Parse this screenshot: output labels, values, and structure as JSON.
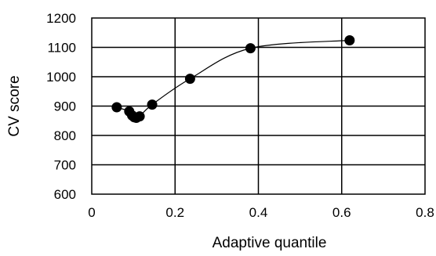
{
  "chart_data": {
    "type": "scatter",
    "title": "",
    "xlabel": "Adaptive quantile",
    "ylabel": "CV score",
    "xlim": [
      0,
      0.8
    ],
    "ylim": [
      600,
      1200
    ],
    "x_ticks": [
      0,
      0.2,
      0.4,
      0.6,
      0.8
    ],
    "x_tick_labels": [
      "0",
      "0.2",
      "0.4",
      "0.6",
      "0.8"
    ],
    "y_ticks": [
      600,
      700,
      800,
      900,
      1000,
      1100,
      1200
    ],
    "y_tick_labels": [
      "600",
      "700",
      "800",
      "900",
      "1000",
      "1100",
      "1200"
    ],
    "grid": "vertical",
    "legend": "none",
    "smooth_line": true,
    "marker_color": "#000000",
    "line_color": "#000000",
    "series": [
      {
        "x": [
          0.06,
          0.09,
          0.097,
          0.102,
          0.107,
          0.115,
          0.145,
          0.236,
          0.381,
          0.619
        ],
        "y": [
          896,
          882,
          868,
          862,
          860,
          865,
          905,
          993,
          1097,
          1124
        ]
      }
    ]
  }
}
